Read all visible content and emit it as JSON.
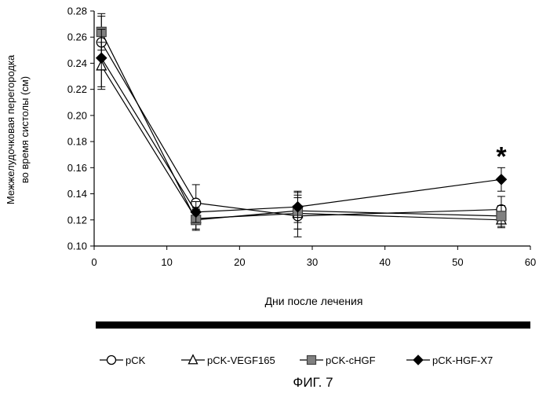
{
  "chart_data": {
    "type": "line",
    "ylabel_line1": "Межжелудочковая перегородка",
    "ylabel_line2": "во время систолы (см)",
    "xlabel": "Дни после лечения",
    "xlim": [
      0,
      60
    ],
    "ylim": [
      0.1,
      0.28
    ],
    "xticks": [
      0,
      10,
      20,
      30,
      40,
      50,
      60
    ],
    "xtick_labels": [
      "0",
      "10",
      "20",
      "30",
      "40",
      "50",
      "60"
    ],
    "yticks": [
      0.1,
      0.12,
      0.14,
      0.16,
      0.18,
      0.2,
      0.22,
      0.24,
      0.26,
      0.28
    ],
    "ytick_labels": [
      "0.10",
      "0.12",
      "0.14",
      "0.16",
      "0.18",
      "0.20",
      "0.22",
      "0.24",
      "0.26",
      "0.28"
    ],
    "grid": false,
    "legend_position": "bottom",
    "x": [
      1,
      14,
      28,
      56
    ],
    "series": [
      {
        "name": "pCK",
        "marker": "circle-open",
        "color": "#000000",
        "values": [
          0.256,
          0.133,
          0.123,
          0.128
        ],
        "errors": [
          0.02,
          0.014,
          0.016,
          0.01
        ]
      },
      {
        "name": "pCK-VEGF165",
        "marker": "triangle-open",
        "color": "#000000",
        "values": [
          0.238,
          0.121,
          0.125,
          0.12
        ],
        "errors": [
          0.018,
          0.008,
          0.012,
          0.006
        ]
      },
      {
        "name": "pCK-cHGF",
        "marker": "square-gray",
        "color": "#808080",
        "values": [
          0.264,
          0.12,
          0.127,
          0.123
        ],
        "errors": [
          0.014,
          0.008,
          0.014,
          0.008
        ]
      },
      {
        "name": "pCK-HGF-X7",
        "marker": "diamond-filled",
        "color": "#000000",
        "values": [
          0.244,
          0.126,
          0.13,
          0.151
        ],
        "errors": [
          0.022,
          0.008,
          0.012,
          0.009
        ]
      }
    ],
    "annotation": {
      "text": "*",
      "x": 56,
      "y": 0.17
    }
  },
  "caption": "ФИГ. 7"
}
